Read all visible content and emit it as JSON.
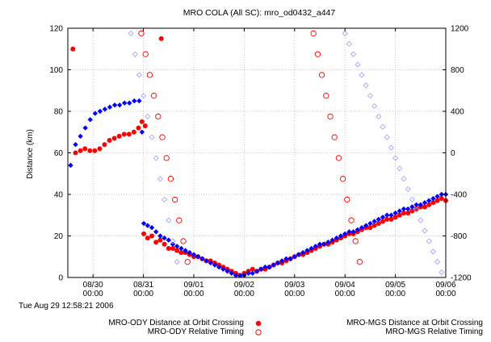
{
  "chart_data": {
    "type": "scatter",
    "title": "MRO COLA (All SC): mro_od0432_a447",
    "ylabel": "Distance (km)",
    "xlabel": "",
    "x_unit": "days",
    "xlim": [
      "2006-08-29T12:00",
      "2006-09-06T00:00"
    ],
    "ylim": [
      0,
      120
    ],
    "y2lim": [
      -1200,
      1200
    ],
    "yticks": [
      "0",
      "20",
      "40",
      "60",
      "80",
      "100",
      "120"
    ],
    "y2ticks": [
      "-1200",
      "-800",
      "-400",
      "0",
      "400",
      "800",
      "1200"
    ],
    "xticks": [
      {
        "date": "08/30",
        "time": "00:00"
      },
      {
        "date": "08/31",
        "time": "00:00"
      },
      {
        "date": "09/01",
        "time": "00:00"
      },
      {
        "date": "09/02",
        "time": "00:00"
      },
      {
        "date": "09/03",
        "time": "00:00"
      },
      {
        "date": "09/04",
        "time": "00:00"
      },
      {
        "date": "09/05",
        "time": "00:00"
      },
      {
        "date": "09/06",
        "time": "00:00"
      }
    ],
    "grid": true,
    "legend_position": "bottom",
    "series": [
      {
        "name": "MRO-ODY Distance at Orbit Crossing",
        "color": "#ff0000",
        "marker": "filled-circle",
        "axis": "left",
        "points": [
          [
            "2006-08-29T14:24",
            110
          ],
          [
            "2006-08-29T15:40",
            60
          ],
          [
            "2006-08-29T18:00",
            61
          ],
          [
            "2006-08-29T20:10",
            62
          ],
          [
            "2006-08-29T22:30",
            61
          ],
          [
            "2006-08-30T00:50",
            61
          ],
          [
            "2006-08-30T03:10",
            62
          ],
          [
            "2006-08-30T05:30",
            64
          ],
          [
            "2006-08-30T07:50",
            66
          ],
          [
            "2006-08-30T10:10",
            67
          ],
          [
            "2006-08-30T12:30",
            68
          ],
          [
            "2006-08-30T14:50",
            69
          ],
          [
            "2006-08-30T17:10",
            69
          ],
          [
            "2006-08-30T19:30",
            70
          ],
          [
            "2006-08-30T21:40",
            72
          ],
          [
            "2006-08-30T23:20",
            75
          ],
          [
            "2006-08-31T00:50",
            73
          ],
          [
            "2006-08-31T08:30",
            115
          ],
          [
            "2006-08-31T00:10",
            21
          ],
          [
            "2006-08-31T02:00",
            19
          ],
          [
            "2006-08-31T04:00",
            20
          ],
          [
            "2006-08-31T06:00",
            17
          ],
          [
            "2006-08-31T08:00",
            18
          ],
          [
            "2006-08-31T10:00",
            16
          ],
          [
            "2006-08-31T12:00",
            14
          ],
          [
            "2006-08-31T14:00",
            14
          ],
          [
            "2006-08-31T16:00",
            13
          ],
          [
            "2006-08-31T18:00",
            12
          ],
          [
            "2006-08-31T20:00",
            12
          ],
          [
            "2006-08-31T22:00",
            11
          ],
          [
            "2006-09-01T00:00",
            10
          ],
          [
            "2006-09-01T02:00",
            10
          ],
          [
            "2006-09-01T04:00",
            9
          ],
          [
            "2006-09-01T06:00",
            8
          ],
          [
            "2006-09-01T08:00",
            8
          ],
          [
            "2006-09-01T10:00",
            7
          ],
          [
            "2006-09-01T12:00",
            6
          ],
          [
            "2006-09-01T14:00",
            5
          ],
          [
            "2006-09-01T16:00",
            4
          ],
          [
            "2006-09-01T18:00",
            3
          ],
          [
            "2006-09-01T20:00",
            2
          ],
          [
            "2006-09-01T22:00",
            1
          ],
          [
            "2006-09-02T00:00",
            2
          ],
          [
            "2006-09-02T02:00",
            3
          ],
          [
            "2006-09-02T04:00",
            4
          ],
          [
            "2006-09-02T06:00",
            3
          ],
          [
            "2006-09-02T08:00",
            4
          ],
          [
            "2006-09-02T10:00",
            4
          ],
          [
            "2006-09-02T12:00",
            5
          ],
          [
            "2006-09-02T14:00",
            6
          ],
          [
            "2006-09-02T16:00",
            7
          ],
          [
            "2006-09-02T18:00",
            7
          ],
          [
            "2006-09-02T20:00",
            8
          ],
          [
            "2006-09-02T22:00",
            9
          ],
          [
            "2006-09-03T00:00",
            10
          ],
          [
            "2006-09-03T02:00",
            11
          ],
          [
            "2006-09-03T04:00",
            11
          ],
          [
            "2006-09-03T06:00",
            12
          ],
          [
            "2006-09-03T08:00",
            13
          ],
          [
            "2006-09-03T10:00",
            14
          ],
          [
            "2006-09-03T12:00",
            15
          ],
          [
            "2006-09-03T14:00",
            16
          ],
          [
            "2006-09-03T16:00",
            16
          ],
          [
            "2006-09-03T18:00",
            17
          ],
          [
            "2006-09-03T20:00",
            18
          ],
          [
            "2006-09-03T22:00",
            19
          ],
          [
            "2006-09-04T00:00",
            20
          ],
          [
            "2006-09-04T02:00",
            21
          ],
          [
            "2006-09-04T04:00",
            21
          ],
          [
            "2006-09-04T06:00",
            22
          ],
          [
            "2006-09-04T08:00",
            23
          ],
          [
            "2006-09-04T10:00",
            24
          ],
          [
            "2006-09-04T12:00",
            24
          ],
          [
            "2006-09-04T14:00",
            25
          ],
          [
            "2006-09-04T16:00",
            26
          ],
          [
            "2006-09-04T18:00",
            27
          ],
          [
            "2006-09-04T20:00",
            28
          ],
          [
            "2006-09-04T22:00",
            28
          ],
          [
            "2006-09-05T00:00",
            29
          ],
          [
            "2006-09-05T02:00",
            30
          ],
          [
            "2006-09-05T04:00",
            31
          ],
          [
            "2006-09-05T06:00",
            31
          ],
          [
            "2006-09-05T08:00",
            32
          ],
          [
            "2006-09-05T10:00",
            33
          ],
          [
            "2006-09-05T12:00",
            34
          ],
          [
            "2006-09-05T14:00",
            34
          ],
          [
            "2006-09-05T16:00",
            35
          ],
          [
            "2006-09-05T18:00",
            36
          ],
          [
            "2006-09-05T20:00",
            37
          ],
          [
            "2006-09-05T22:00",
            38
          ],
          [
            "2006-09-06T00:00",
            37
          ]
        ]
      },
      {
        "name": "MRO-ODY Relative Timing",
        "color": "#ff0000",
        "marker": "open-circle",
        "axis": "right",
        "points": [
          [
            "2006-08-30T23:00",
            1150
          ],
          [
            "2006-08-31T01:00",
            950
          ],
          [
            "2006-08-31T03:00",
            750
          ],
          [
            "2006-08-31T05:00",
            550
          ],
          [
            "2006-08-31T07:00",
            350
          ],
          [
            "2006-08-31T09:00",
            150
          ],
          [
            "2006-08-31T11:00",
            -50
          ],
          [
            "2006-08-31T13:00",
            -250
          ],
          [
            "2006-08-31T15:00",
            -450
          ],
          [
            "2006-08-31T17:00",
            -650
          ],
          [
            "2006-08-31T19:00",
            -850
          ],
          [
            "2006-08-31T21:00",
            -1050
          ],
          [
            "2006-09-03T09:00",
            1150
          ],
          [
            "2006-09-03T11:00",
            950
          ],
          [
            "2006-09-03T13:00",
            750
          ],
          [
            "2006-09-03T15:00",
            550
          ],
          [
            "2006-09-03T17:00",
            350
          ],
          [
            "2006-09-03T19:00",
            150
          ],
          [
            "2006-09-03T21:00",
            -50
          ],
          [
            "2006-09-03T23:00",
            -250
          ],
          [
            "2006-09-04T01:00",
            -450
          ],
          [
            "2006-09-04T03:00",
            -650
          ],
          [
            "2006-09-04T05:00",
            -850
          ],
          [
            "2006-09-04T07:00",
            -1050
          ]
        ]
      },
      {
        "name": "MRO-MGS Distance at Orbit Crossing",
        "color": "#0000ff",
        "marker": "filled-diamond",
        "axis": "left",
        "points": [
          [
            "2006-08-29T13:20",
            54
          ],
          [
            "2006-08-29T15:40",
            64
          ],
          [
            "2006-08-29T18:00",
            68
          ],
          [
            "2006-08-29T20:20",
            72
          ],
          [
            "2006-08-29T22:40",
            76
          ],
          [
            "2006-08-30T01:00",
            79
          ],
          [
            "2006-08-30T03:20",
            80
          ],
          [
            "2006-08-30T05:40",
            81
          ],
          [
            "2006-08-30T08:00",
            82
          ],
          [
            "2006-08-30T10:20",
            83
          ],
          [
            "2006-08-30T12:40",
            83
          ],
          [
            "2006-08-30T15:00",
            84
          ],
          [
            "2006-08-30T17:20",
            84
          ],
          [
            "2006-08-30T19:40",
            85
          ],
          [
            "2006-08-30T22:00",
            85
          ],
          [
            "2006-08-30T23:20",
            70
          ],
          [
            "2006-08-31T00:10",
            26
          ],
          [
            "2006-08-31T02:00",
            25
          ],
          [
            "2006-08-31T04:00",
            24
          ],
          [
            "2006-08-31T06:00",
            22
          ],
          [
            "2006-08-31T08:00",
            20
          ],
          [
            "2006-08-31T10:00",
            19
          ],
          [
            "2006-08-31T12:00",
            18
          ],
          [
            "2006-08-31T14:00",
            16
          ],
          [
            "2006-08-31T16:00",
            15
          ],
          [
            "2006-08-31T18:00",
            14
          ],
          [
            "2006-08-31T20:00",
            13
          ],
          [
            "2006-08-31T22:00",
            12
          ],
          [
            "2006-09-01T00:00",
            11
          ],
          [
            "2006-09-01T02:00",
            10
          ],
          [
            "2006-09-01T04:00",
            9
          ],
          [
            "2006-09-01T06:00",
            8
          ],
          [
            "2006-09-01T08:00",
            7
          ],
          [
            "2006-09-01T10:00",
            6
          ],
          [
            "2006-09-01T12:00",
            5
          ],
          [
            "2006-09-01T14:00",
            4
          ],
          [
            "2006-09-01T16:00",
            3
          ],
          [
            "2006-09-01T18:00",
            2
          ],
          [
            "2006-09-01T20:00",
            1
          ],
          [
            "2006-09-01T22:00",
            1
          ],
          [
            "2006-09-02T00:00",
            1
          ],
          [
            "2006-09-02T02:00",
            2
          ],
          [
            "2006-09-02T04:00",
            2
          ],
          [
            "2006-09-02T06:00",
            3
          ],
          [
            "2006-09-02T08:00",
            4
          ],
          [
            "2006-09-02T10:00",
            5
          ],
          [
            "2006-09-02T12:00",
            5
          ],
          [
            "2006-09-02T14:00",
            6
          ],
          [
            "2006-09-02T16:00",
            7
          ],
          [
            "2006-09-02T18:00",
            8
          ],
          [
            "2006-09-02T20:00",
            9
          ],
          [
            "2006-09-02T22:00",
            9
          ],
          [
            "2006-09-03T00:00",
            10
          ],
          [
            "2006-09-03T02:00",
            11
          ],
          [
            "2006-09-03T04:00",
            12
          ],
          [
            "2006-09-03T06:00",
            13
          ],
          [
            "2006-09-03T08:00",
            14
          ],
          [
            "2006-09-03T10:00",
            15
          ],
          [
            "2006-09-03T12:00",
            16
          ],
          [
            "2006-09-03T14:00",
            16
          ],
          [
            "2006-09-03T16:00",
            17
          ],
          [
            "2006-09-03T18:00",
            18
          ],
          [
            "2006-09-03T20:00",
            19
          ],
          [
            "2006-09-03T22:00",
            20
          ],
          [
            "2006-09-04T00:00",
            21
          ],
          [
            "2006-09-04T02:00",
            22
          ],
          [
            "2006-09-04T04:00",
            22
          ],
          [
            "2006-09-04T06:00",
            23
          ],
          [
            "2006-09-04T08:00",
            24
          ],
          [
            "2006-09-04T10:00",
            25
          ],
          [
            "2006-09-04T12:00",
            26
          ],
          [
            "2006-09-04T14:00",
            27
          ],
          [
            "2006-09-04T16:00",
            28
          ],
          [
            "2006-09-04T18:00",
            29
          ],
          [
            "2006-09-04T20:00",
            30
          ],
          [
            "2006-09-04T22:00",
            30
          ],
          [
            "2006-09-05T00:00",
            31
          ],
          [
            "2006-09-05T02:00",
            32
          ],
          [
            "2006-09-05T04:00",
            33
          ],
          [
            "2006-09-05T06:00",
            33
          ],
          [
            "2006-09-05T08:00",
            34
          ],
          [
            "2006-09-05T10:00",
            35
          ],
          [
            "2006-09-05T12:00",
            35
          ],
          [
            "2006-09-05T14:00",
            36
          ],
          [
            "2006-09-05T16:00",
            37
          ],
          [
            "2006-09-05T18:00",
            38
          ],
          [
            "2006-09-05T20:00",
            39
          ],
          [
            "2006-09-05T22:00",
            40
          ],
          [
            "2006-09-06T00:00",
            40
          ]
        ]
      },
      {
        "name": "MRO-MGS Relative Timing",
        "color": "#0000ff",
        "marker": "open-diamond",
        "axis": "right",
        "points": [
          [
            "2006-08-30T18:00",
            1150
          ],
          [
            "2006-08-30T20:00",
            950
          ],
          [
            "2006-08-30T22:00",
            750
          ],
          [
            "2006-08-31T00:00",
            550
          ],
          [
            "2006-08-31T02:00",
            350
          ],
          [
            "2006-08-31T04:00",
            150
          ],
          [
            "2006-08-31T06:00",
            -50
          ],
          [
            "2006-08-31T08:00",
            -250
          ],
          [
            "2006-08-31T10:00",
            -450
          ],
          [
            "2006-08-31T12:00",
            -650
          ],
          [
            "2006-08-31T14:00",
            -850
          ],
          [
            "2006-08-31T16:00",
            -1050
          ],
          [
            "2006-09-04T00:00",
            1150
          ],
          [
            "2006-09-04T02:00",
            1050
          ],
          [
            "2006-09-04T04:00",
            950
          ],
          [
            "2006-09-04T06:00",
            850
          ],
          [
            "2006-09-04T08:00",
            750
          ],
          [
            "2006-09-04T10:00",
            650
          ],
          [
            "2006-09-04T12:00",
            550
          ],
          [
            "2006-09-04T14:00",
            450
          ],
          [
            "2006-09-04T16:00",
            350
          ],
          [
            "2006-09-04T18:00",
            250
          ],
          [
            "2006-09-04T20:00",
            150
          ],
          [
            "2006-09-04T22:00",
            50
          ],
          [
            "2006-09-05T00:00",
            -50
          ],
          [
            "2006-09-05T02:00",
            -150
          ],
          [
            "2006-09-05T04:00",
            -250
          ],
          [
            "2006-09-05T06:00",
            -350
          ],
          [
            "2006-09-05T08:00",
            -450
          ],
          [
            "2006-09-05T10:00",
            -550
          ],
          [
            "2006-09-05T12:00",
            -650
          ],
          [
            "2006-09-05T14:00",
            -750
          ],
          [
            "2006-09-05T16:00",
            -850
          ],
          [
            "2006-09-05T18:00",
            -950
          ],
          [
            "2006-09-05T20:00",
            -1050
          ],
          [
            "2006-09-05T22:00",
            -1150
          ]
        ]
      }
    ]
  },
  "timestamp": "Tue Aug 29 12:58:21 2006",
  "legend": {
    "left": [
      "MRO-ODY Distance at Orbit Crossing",
      "MRO-ODY Relative Timing"
    ],
    "right": [
      "MRO-MGS Distance at Orbit Crossing",
      "MRO-MGS Relative Timing"
    ]
  }
}
